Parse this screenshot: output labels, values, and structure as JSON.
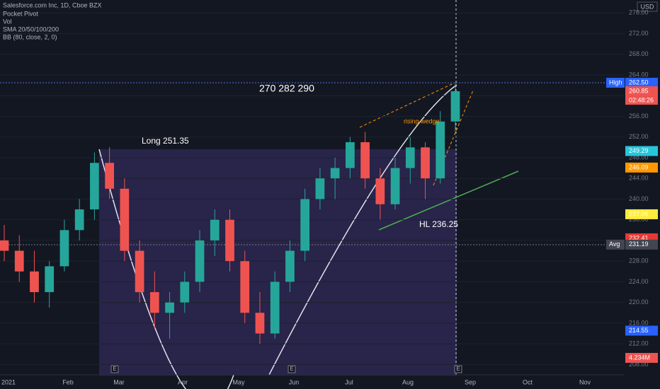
{
  "chart_data": {
    "type": "candlestick",
    "title": "Salesforce.com Inc, 1D, Cboe BZX",
    "indicators": [
      "Pocket Pivot",
      "Vol",
      "SMA 20/50/100/200",
      "BB (80, close, 2, 0)"
    ],
    "currency": "USD",
    "annotations": [
      "270  282  290",
      "Long 251.35",
      "HL 236.25",
      "rising wedge"
    ],
    "x_labels": [
      "2021",
      "Feb",
      "Mar",
      "Apr",
      "May",
      "Jun",
      "Jul",
      "Aug",
      "Sep",
      "Oct",
      "Nov"
    ],
    "earnings_markers": [
      "E",
      "E",
      "E"
    ],
    "ylim": [
      206,
      278.5
    ],
    "yticks": [
      {
        "value": 208,
        "label": "208.00"
      },
      {
        "value": 212,
        "label": "212.00"
      },
      {
        "value": 216,
        "label": "216.00"
      },
      {
        "value": 220,
        "label": "220.00"
      },
      {
        "value": 224,
        "label": "224.00"
      },
      {
        "value": 228,
        "label": "228.00"
      },
      {
        "value": 232,
        "label": "232.00"
      },
      {
        "value": 236,
        "label": "236.00"
      },
      {
        "value": 240,
        "label": "240.00"
      },
      {
        "value": 244,
        "label": "244.00"
      },
      {
        "value": 248,
        "label": "248.00"
      },
      {
        "value": 252,
        "label": "252.00"
      },
      {
        "value": 256,
        "label": "256.00"
      },
      {
        "value": 260,
        "label": "260.00"
      },
      {
        "value": 264,
        "label": "264.00"
      },
      {
        "value": 268,
        "label": "268.00"
      },
      {
        "value": 272,
        "label": "272.00"
      },
      {
        "value": 276,
        "label": "276.00"
      }
    ],
    "grid": true,
    "up_color": "#26a69a",
    "down_color": "#ef5350",
    "price_tags": [
      {
        "value": 262.5,
        "label": "262.50",
        "color": "#2962ff",
        "note": "High"
      },
      {
        "value": 260.85,
        "label": "260.85",
        "color": "#ef5350",
        "note": "02:48:26"
      },
      {
        "value": 249.29,
        "label": "249.29",
        "color": "#26c6da"
      },
      {
        "value": 246.09,
        "label": "246.09",
        "color": "#ff9800"
      },
      {
        "value": 237.06,
        "label": "237.06",
        "color": "#ffeb3b"
      },
      {
        "value": 232.41,
        "label": "232.41",
        "color": "#e53935"
      },
      {
        "value": 231.19,
        "label": "231.19",
        "color": "#434651",
        "note": "Avg"
      },
      {
        "value": 214.55,
        "label": "214.55",
        "color": "#2962ff"
      }
    ],
    "volume_label": "4.234M",
    "candles": [
      {
        "open": 232,
        "high": 235,
        "low": 228,
        "close": 230
      },
      {
        "open": 230,
        "high": 233,
        "low": 224,
        "close": 226
      },
      {
        "open": 226,
        "high": 230,
        "low": 220,
        "close": 222
      },
      {
        "open": 222,
        "high": 228,
        "low": 219,
        "close": 227
      },
      {
        "open": 227,
        "high": 236,
        "low": 226,
        "close": 234
      },
      {
        "open": 234,
        "high": 240,
        "low": 232,
        "close": 238
      },
      {
        "open": 238,
        "high": 249,
        "low": 236,
        "close": 247
      },
      {
        "open": 247,
        "high": 250,
        "low": 240,
        "close": 242
      },
      {
        "open": 242,
        "high": 244,
        "low": 228,
        "close": 230
      },
      {
        "open": 230,
        "high": 232,
        "low": 220,
        "close": 222
      },
      {
        "open": 222,
        "high": 226,
        "low": 215,
        "close": 218
      },
      {
        "open": 218,
        "high": 222,
        "low": 213,
        "close": 220
      },
      {
        "open": 220,
        "high": 226,
        "low": 218,
        "close": 224
      },
      {
        "open": 224,
        "high": 234,
        "low": 222,
        "close": 232
      },
      {
        "open": 232,
        "high": 238,
        "low": 229,
        "close": 236
      },
      {
        "open": 236,
        "high": 238,
        "low": 226,
        "close": 228
      },
      {
        "open": 228,
        "high": 230,
        "low": 216,
        "close": 218
      },
      {
        "open": 218,
        "high": 222,
        "low": 212,
        "close": 214
      },
      {
        "open": 214,
        "high": 226,
        "low": 213,
        "close": 224
      },
      {
        "open": 224,
        "high": 232,
        "low": 222,
        "close": 230
      },
      {
        "open": 230,
        "high": 242,
        "low": 228,
        "close": 240
      },
      {
        "open": 240,
        "high": 246,
        "low": 238,
        "close": 244
      },
      {
        "open": 244,
        "high": 248,
        "low": 240,
        "close": 246
      },
      {
        "open": 246,
        "high": 252,
        "low": 244,
        "close": 251
      },
      {
        "open": 251,
        "high": 253,
        "low": 242,
        "close": 244
      },
      {
        "open": 244,
        "high": 246,
        "low": 236,
        "close": 239
      },
      {
        "open": 239,
        "high": 248,
        "low": 238,
        "close": 246
      },
      {
        "open": 246,
        "high": 252,
        "low": 243,
        "close": 250
      },
      {
        "open": 250,
        "high": 251,
        "low": 240,
        "close": 244
      },
      {
        "open": 244,
        "high": 257,
        "low": 243,
        "close": 255
      },
      {
        "open": 255,
        "high": 262.5,
        "low": 253,
        "close": 260.85
      }
    ]
  }
}
